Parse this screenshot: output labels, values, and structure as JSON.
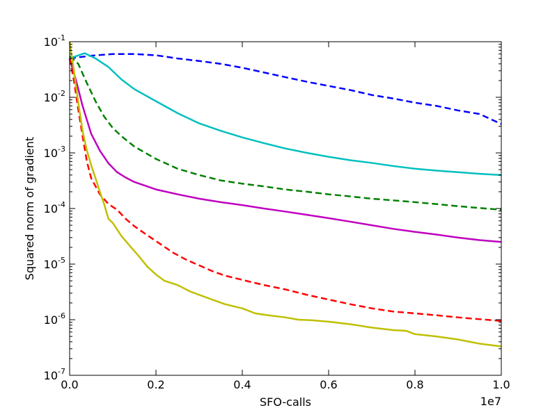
{
  "chart_data": {
    "type": "line",
    "title": "",
    "xlabel": "SFO-calls",
    "ylabel": "Squared norm of gradient",
    "x_offset_label": "1e7",
    "xlim": [
      0.0,
      1.0
    ],
    "ylim": [
      1e-07,
      0.1
    ],
    "yscale": "log",
    "grid": false,
    "legend": "none",
    "x_ticks": [
      {
        "value": 0.0,
        "label": "0.0"
      },
      {
        "value": 0.2,
        "label": "0.2"
      },
      {
        "value": 0.4,
        "label": "0.4"
      },
      {
        "value": 0.6,
        "label": "0.6"
      },
      {
        "value": 0.8,
        "label": "0.8"
      },
      {
        "value": 1.0,
        "label": "1.0"
      }
    ],
    "y_ticks": [
      {
        "value": 1e-07,
        "base": "10",
        "exp": "-7"
      },
      {
        "value": 1e-06,
        "base": "10",
        "exp": "-6"
      },
      {
        "value": 1e-05,
        "base": "10",
        "exp": "-5"
      },
      {
        "value": 0.0001,
        "base": "10",
        "exp": "-4"
      },
      {
        "value": 0.001,
        "base": "10",
        "exp": "-3"
      },
      {
        "value": 0.01,
        "base": "10",
        "exp": "-2"
      },
      {
        "value": 0.1,
        "base": "10",
        "exp": "-1"
      }
    ],
    "series": [
      {
        "color": "#0000ff",
        "dash": "dashed",
        "points": [
          [
            0.0,
            0.05
          ],
          [
            0.05,
            0.056
          ],
          [
            0.1,
            0.06
          ],
          [
            0.15,
            0.06
          ],
          [
            0.2,
            0.057
          ],
          [
            0.25,
            0.05
          ],
          [
            0.3,
            0.045
          ],
          [
            0.35,
            0.04
          ],
          [
            0.4,
            0.034
          ],
          [
            0.45,
            0.028
          ],
          [
            0.5,
            0.023
          ],
          [
            0.55,
            0.019
          ],
          [
            0.6,
            0.016
          ],
          [
            0.65,
            0.0135
          ],
          [
            0.7,
            0.011
          ],
          [
            0.75,
            0.0095
          ],
          [
            0.8,
            0.008
          ],
          [
            0.85,
            0.007
          ],
          [
            0.9,
            0.0058
          ],
          [
            0.95,
            0.005
          ],
          [
            1.0,
            0.0033
          ]
        ]
      },
      {
        "color": "#00bfbf",
        "dash": "solid",
        "points": [
          [
            0.0,
            0.05
          ],
          [
            0.035,
            0.062
          ],
          [
            0.06,
            0.05
          ],
          [
            0.09,
            0.035
          ],
          [
            0.12,
            0.021
          ],
          [
            0.15,
            0.014
          ],
          [
            0.2,
            0.0085
          ],
          [
            0.25,
            0.0052
          ],
          [
            0.3,
            0.0034
          ],
          [
            0.35,
            0.0025
          ],
          [
            0.4,
            0.0019
          ],
          [
            0.45,
            0.0015
          ],
          [
            0.5,
            0.0012
          ],
          [
            0.55,
            0.001
          ],
          [
            0.6,
            0.00085
          ],
          [
            0.65,
            0.00074
          ],
          [
            0.7,
            0.00066
          ],
          [
            0.75,
            0.00058
          ],
          [
            0.8,
            0.00052
          ],
          [
            0.85,
            0.00048
          ],
          [
            0.9,
            0.00045
          ],
          [
            0.95,
            0.00042
          ],
          [
            1.0,
            0.0004
          ]
        ]
      },
      {
        "color": "#008000",
        "dash": "dashed",
        "points": [
          [
            0.0,
            0.055
          ],
          [
            0.02,
            0.04
          ],
          [
            0.04,
            0.018
          ],
          [
            0.06,
            0.0085
          ],
          [
            0.08,
            0.0045
          ],
          [
            0.1,
            0.0028
          ],
          [
            0.12,
            0.002
          ],
          [
            0.15,
            0.0013
          ],
          [
            0.2,
            0.00078
          ],
          [
            0.25,
            0.00052
          ],
          [
            0.3,
            0.0004
          ],
          [
            0.35,
            0.00032
          ],
          [
            0.4,
            0.00028
          ],
          [
            0.45,
            0.00025
          ],
          [
            0.5,
            0.00022
          ],
          [
            0.55,
            0.0002
          ],
          [
            0.6,
            0.00018
          ],
          [
            0.65,
            0.000165
          ],
          [
            0.7,
            0.00015
          ],
          [
            0.75,
            0.00014
          ],
          [
            0.8,
            0.00013
          ],
          [
            0.85,
            0.00012
          ],
          [
            0.9,
            0.00011
          ],
          [
            0.95,
            0.000102
          ],
          [
            1.0,
            9.5e-05
          ]
        ]
      },
      {
        "color": "#bf00bf",
        "dash": "solid",
        "points": [
          [
            0.0,
            0.05
          ],
          [
            0.015,
            0.02
          ],
          [
            0.03,
            0.007
          ],
          [
            0.05,
            0.0022
          ],
          [
            0.07,
            0.0011
          ],
          [
            0.09,
            0.00065
          ],
          [
            0.11,
            0.00045
          ],
          [
            0.13,
            0.00036
          ],
          [
            0.15,
            0.0003
          ],
          [
            0.2,
            0.00022
          ],
          [
            0.25,
            0.00018
          ],
          [
            0.3,
            0.00015
          ],
          [
            0.35,
            0.00013
          ],
          [
            0.4,
            0.000115
          ],
          [
            0.45,
            0.0001
          ],
          [
            0.5,
            8.8e-05
          ],
          [
            0.55,
            7.7e-05
          ],
          [
            0.6,
            6.7e-05
          ],
          [
            0.65,
            5.8e-05
          ],
          [
            0.7,
            5e-05
          ],
          [
            0.75,
            4.3e-05
          ],
          [
            0.8,
            3.8e-05
          ],
          [
            0.85,
            3.4e-05
          ],
          [
            0.9,
            3e-05
          ],
          [
            0.95,
            2.7e-05
          ],
          [
            1.0,
            2.5e-05
          ]
        ]
      },
      {
        "color": "#ff0000",
        "dash": "dashed",
        "points": [
          [
            0.0,
            0.05
          ],
          [
            0.01,
            0.02
          ],
          [
            0.02,
            0.006
          ],
          [
            0.03,
            0.002
          ],
          [
            0.04,
            0.0007
          ],
          [
            0.05,
            0.00035
          ],
          [
            0.07,
            0.00018
          ],
          [
            0.09,
            0.00012
          ],
          [
            0.11,
            9.5e-05
          ],
          [
            0.13,
            6.5e-05
          ],
          [
            0.15,
            4.8e-05
          ],
          [
            0.18,
            3.3e-05
          ],
          [
            0.21,
            2.3e-05
          ],
          [
            0.24,
            1.6e-05
          ],
          [
            0.27,
            1.2e-05
          ],
          [
            0.3,
            9.5e-06
          ],
          [
            0.33,
            7.5e-06
          ],
          [
            0.36,
            6.2e-06
          ],
          [
            0.4,
            5.2e-06
          ],
          [
            0.45,
            4.2e-06
          ],
          [
            0.5,
            3.5e-06
          ],
          [
            0.55,
            2.8e-06
          ],
          [
            0.6,
            2.3e-06
          ],
          [
            0.65,
            1.9e-06
          ],
          [
            0.7,
            1.6e-06
          ],
          [
            0.75,
            1.4e-06
          ],
          [
            0.8,
            1.3e-06
          ],
          [
            0.85,
            1.2e-06
          ],
          [
            0.9,
            1.1e-06
          ],
          [
            0.95,
            1.02e-06
          ],
          [
            1.0,
            9.5e-07
          ]
        ]
      },
      {
        "color": "#bfbf00",
        "dash": "solid",
        "points": [
          [
            0.0,
            0.1
          ],
          [
            0.01,
            0.03
          ],
          [
            0.02,
            0.008
          ],
          [
            0.03,
            0.0025
          ],
          [
            0.04,
            0.0011
          ],
          [
            0.05,
            0.0006
          ],
          [
            0.06,
            0.00035
          ],
          [
            0.07,
            0.0002
          ],
          [
            0.08,
            0.00012
          ],
          [
            0.09,
            6.5e-05
          ],
          [
            0.1,
            5.5e-05
          ],
          [
            0.12,
            3.2e-05
          ],
          [
            0.14,
            2.1e-05
          ],
          [
            0.16,
            1.4e-05
          ],
          [
            0.18,
            9e-06
          ],
          [
            0.2,
            6.5e-06
          ],
          [
            0.22,
            5e-06
          ],
          [
            0.25,
            4.2e-06
          ],
          [
            0.28,
            3.2e-06
          ],
          [
            0.3,
            2.8e-06
          ],
          [
            0.33,
            2.3e-06
          ],
          [
            0.36,
            1.9e-06
          ],
          [
            0.4,
            1.6e-06
          ],
          [
            0.43,
            1.3e-06
          ],
          [
            0.46,
            1.2e-06
          ],
          [
            0.5,
            1.1e-06
          ],
          [
            0.53,
            1e-06
          ],
          [
            0.56,
            9.8e-07
          ],
          [
            0.6,
            9.2e-07
          ],
          [
            0.65,
            8.3e-07
          ],
          [
            0.7,
            7.2e-07
          ],
          [
            0.75,
            6.5e-07
          ],
          [
            0.78,
            6.3e-07
          ],
          [
            0.8,
            5.5e-07
          ],
          [
            0.85,
            5e-07
          ],
          [
            0.9,
            4.4e-07
          ],
          [
            0.95,
            3.7e-07
          ],
          [
            1.0,
            3.3e-07
          ]
        ]
      }
    ]
  }
}
